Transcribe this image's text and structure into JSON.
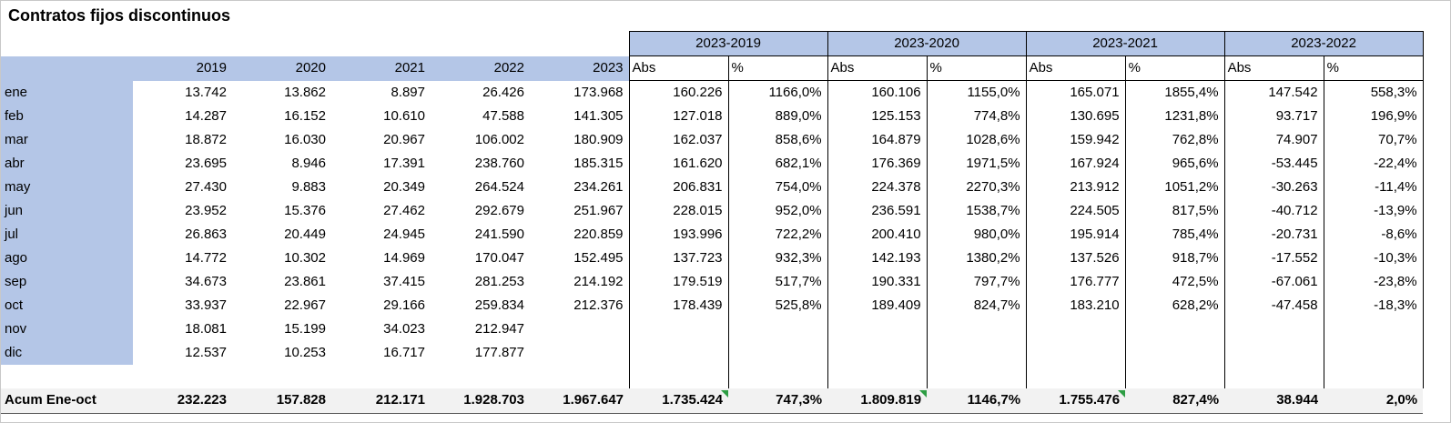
{
  "title": "Contratos fijos discontinuos",
  "colors": {
    "header_fill": "#b4c6e7",
    "total_fill": "#f2f2f2",
    "grid_border": "#000000",
    "indicator_green": "#2e9e44"
  },
  "table": {
    "year_headers": [
      "2019",
      "2020",
      "2021",
      "2022",
      "2023"
    ],
    "groups": [
      {
        "label": "2023-2019"
      },
      {
        "label": "2023-2020"
      },
      {
        "label": "2023-2021"
      },
      {
        "label": "2023-2022"
      }
    ],
    "sub_headers": [
      "Abs",
      "%",
      "Abs",
      "%",
      "Abs",
      "%",
      "Abs",
      "%"
    ],
    "rows": [
      {
        "month": "ene",
        "values": [
          "13.742",
          "13.862",
          "8.897",
          "26.426",
          "173.968"
        ],
        "comparisons": [
          "160.226",
          "1166,0%",
          "160.106",
          "1155,0%",
          "165.071",
          "1855,4%",
          "147.542",
          "558,3%"
        ]
      },
      {
        "month": "feb",
        "values": [
          "14.287",
          "16.152",
          "10.610",
          "47.588",
          "141.305"
        ],
        "comparisons": [
          "127.018",
          "889,0%",
          "125.153",
          "774,8%",
          "130.695",
          "1231,8%",
          "93.717",
          "196,9%"
        ]
      },
      {
        "month": "mar",
        "values": [
          "18.872",
          "16.030",
          "20.967",
          "106.002",
          "180.909"
        ],
        "comparisons": [
          "162.037",
          "858,6%",
          "164.879",
          "1028,6%",
          "159.942",
          "762,8%",
          "74.907",
          "70,7%"
        ]
      },
      {
        "month": "abr",
        "values": [
          "23.695",
          "8.946",
          "17.391",
          "238.760",
          "185.315"
        ],
        "comparisons": [
          "161.620",
          "682,1%",
          "176.369",
          "1971,5%",
          "167.924",
          "965,6%",
          "-53.445",
          "-22,4%"
        ]
      },
      {
        "month": "may",
        "values": [
          "27.430",
          "9.883",
          "20.349",
          "264.524",
          "234.261"
        ],
        "comparisons": [
          "206.831",
          "754,0%",
          "224.378",
          "2270,3%",
          "213.912",
          "1051,2%",
          "-30.263",
          "-11,4%"
        ]
      },
      {
        "month": "jun",
        "values": [
          "23.952",
          "15.376",
          "27.462",
          "292.679",
          "251.967"
        ],
        "comparisons": [
          "228.015",
          "952,0%",
          "236.591",
          "1538,7%",
          "224.505",
          "817,5%",
          "-40.712",
          "-13,9%"
        ]
      },
      {
        "month": "jul",
        "values": [
          "26.863",
          "20.449",
          "24.945",
          "241.590",
          "220.859"
        ],
        "comparisons": [
          "193.996",
          "722,2%",
          "200.410",
          "980,0%",
          "195.914",
          "785,4%",
          "-20.731",
          "-8,6%"
        ]
      },
      {
        "month": "ago",
        "values": [
          "14.772",
          "10.302",
          "14.969",
          "170.047",
          "152.495"
        ],
        "comparisons": [
          "137.723",
          "932,3%",
          "142.193",
          "1380,2%",
          "137.526",
          "918,7%",
          "-17.552",
          "-10,3%"
        ]
      },
      {
        "month": "sep",
        "values": [
          "34.673",
          "23.861",
          "37.415",
          "281.253",
          "214.192"
        ],
        "comparisons": [
          "179.519",
          "517,7%",
          "190.331",
          "797,7%",
          "176.777",
          "472,5%",
          "-67.061",
          "-23,8%"
        ]
      },
      {
        "month": "oct",
        "values": [
          "33.937",
          "22.967",
          "29.166",
          "259.834",
          "212.376"
        ],
        "comparisons": [
          "178.439",
          "525,8%",
          "189.409",
          "824,7%",
          "183.210",
          "628,2%",
          "-47.458",
          "-18,3%"
        ]
      },
      {
        "month": "nov",
        "values": [
          "18.081",
          "15.199",
          "34.023",
          "212.947",
          ""
        ],
        "comparisons": [
          "",
          "",
          "",
          "",
          "",
          "",
          "",
          ""
        ]
      },
      {
        "month": "dic",
        "values": [
          "12.537",
          "10.253",
          "16.717",
          "177.877",
          ""
        ],
        "comparisons": [
          "",
          "",
          "",
          "",
          "",
          "",
          "",
          ""
        ]
      }
    ],
    "total": {
      "label": "Acum Ene-oct",
      "values": [
        "232.223",
        "157.828",
        "212.171",
        "1.928.703",
        "1.967.647"
      ],
      "comparisons": [
        {
          "text": "1.735.424",
          "indicator": true
        },
        {
          "text": "747,3%",
          "indicator": false
        },
        {
          "text": "1.809.819",
          "indicator": true
        },
        {
          "text": "1146,7%",
          "indicator": false
        },
        {
          "text": "1.755.476",
          "indicator": true
        },
        {
          "text": "827,4%",
          "indicator": false
        },
        {
          "text": "38.944",
          "indicator": false
        },
        {
          "text": "2,0%",
          "indicator": false
        }
      ]
    }
  }
}
